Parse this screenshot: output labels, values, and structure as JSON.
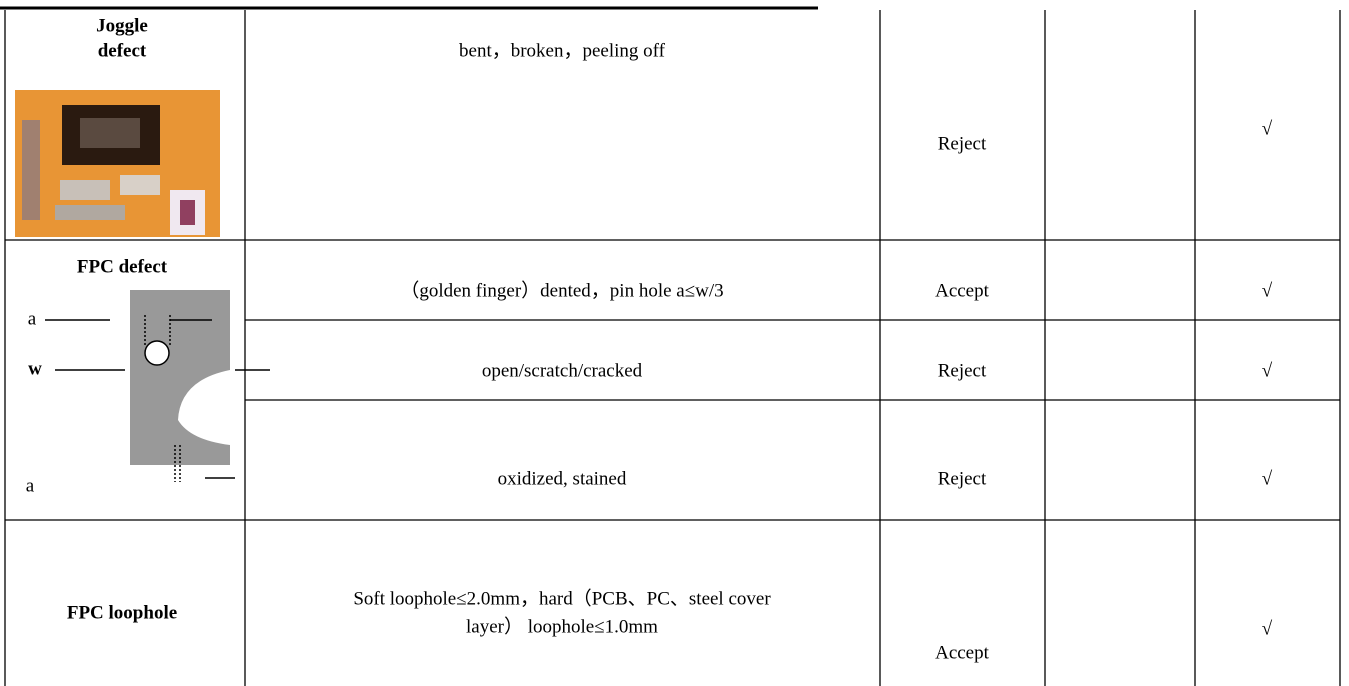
{
  "table": {
    "rows": [
      {
        "item": [
          "Joggle",
          "defect"
        ],
        "criteria": [
          {
            "text": [
              "bent，broken，peeling off"
            ],
            "result": "Reject",
            "mark": "√"
          }
        ]
      },
      {
        "item": [
          "FPC defect"
        ],
        "figure_labels": [
          "a",
          "w",
          "a"
        ],
        "criteria": [
          {
            "text": [
              "（golden finger）dented，pin hole a≤w/3"
            ],
            "result": "Accept",
            "mark": "√"
          },
          {
            "text": [
              "open/scratch/cracked"
            ],
            "result": "Reject",
            "mark": "√"
          },
          {
            "text": [
              "oxidized, stained"
            ],
            "result": "Reject",
            "mark": "√"
          }
        ]
      },
      {
        "item": [
          "FPC loophole"
        ],
        "criteria": [
          {
            "text": [
              "Soft loophole≤2.0mm，hard（PCB、PC、steel cover",
              "layer）  loophole≤1.0mm"
            ],
            "result": "Accept",
            "mark": "√"
          }
        ]
      }
    ]
  }
}
